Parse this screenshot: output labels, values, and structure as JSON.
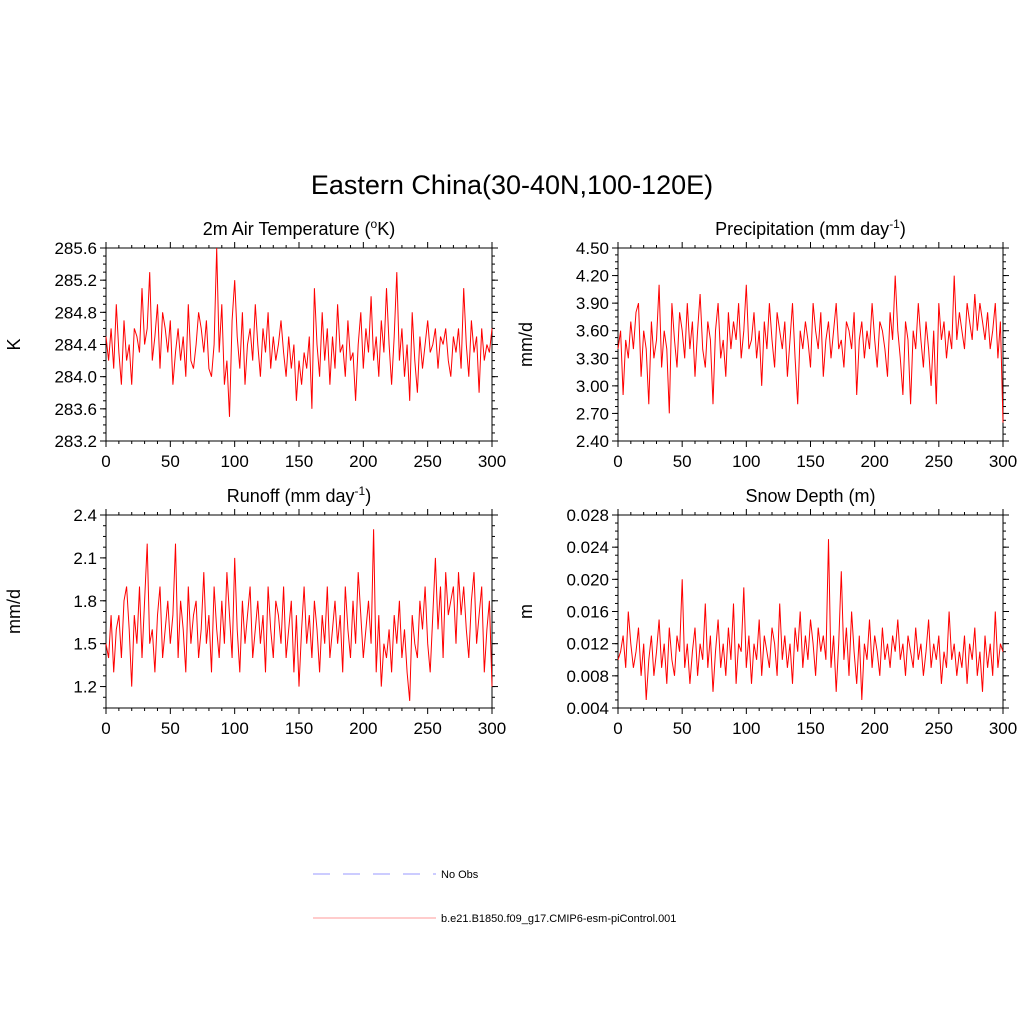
{
  "figure": {
    "title": "Eastern China(30-40N,100-120E)"
  },
  "legend": {
    "items": [
      {
        "label": "No Obs",
        "style": "dashed",
        "color": "#9999ff"
      },
      {
        "label": "b.e21.B1850.f09_g17.CMIP6-esm-piControl.001",
        "style": "solid",
        "color": "#ff9999"
      }
    ]
  },
  "chart_data": [
    {
      "type": "line",
      "title": "2m Air Temperature (",
      "title_sup": "o",
      "title_after": "K)",
      "ylabel": "K",
      "xlim": [
        0,
        300
      ],
      "ylim": [
        283.2,
        285.6
      ],
      "xticks": [
        "0",
        "50",
        "100",
        "150",
        "200",
        "250",
        "300"
      ],
      "yticks": [
        "283.2",
        "283.6",
        "284.0",
        "284.4",
        "284.8",
        "285.2",
        "285.6"
      ],
      "series": [
        {
          "color": "#ff0000",
          "x_start": 0,
          "x_step": 2,
          "values": [
            284.5,
            284.2,
            284.6,
            284.1,
            284.9,
            284.3,
            283.9,
            284.7,
            284.2,
            284.4,
            283.9,
            284.6,
            284.5,
            284.3,
            285.1,
            284.4,
            284.6,
            285.3,
            284.2,
            284.5,
            284.9,
            284.1,
            284.8,
            284.6,
            284.3,
            284.7,
            283.9,
            284.3,
            284.6,
            284.2,
            284.5,
            284.0,
            284.9,
            284.2,
            284.1,
            284.4,
            284.8,
            284.6,
            284.3,
            284.7,
            284.1,
            284.0,
            284.4,
            285.6,
            284.3,
            284.9,
            283.9,
            284.2,
            283.5,
            284.7,
            285.2,
            284.5,
            284.1,
            284.8,
            283.9,
            284.4,
            284.6,
            284.2,
            284.9,
            284.4,
            284.0,
            284.6,
            284.3,
            284.8,
            284.1,
            284.5,
            284.2,
            284.4,
            284.7,
            284.3,
            284.0,
            284.5,
            284.1,
            284.4,
            283.7,
            284.2,
            283.9,
            284.3,
            284.1,
            284.5,
            283.6,
            285.1,
            284.4,
            284.0,
            284.8,
            284.2,
            284.6,
            283.9,
            284.5,
            284.1,
            284.9,
            284.3,
            284.4,
            284.0,
            284.7,
            284.2,
            284.3,
            283.7,
            284.4,
            284.8,
            284.1,
            284.6,
            284.3,
            285.0,
            284.2,
            284.5,
            284.0,
            284.7,
            284.3,
            285.1,
            284.4,
            283.9,
            284.5,
            285.3,
            284.2,
            284.6,
            284.0,
            284.4,
            283.7,
            284.8,
            284.2,
            283.8,
            284.5,
            284.1,
            284.4,
            284.7,
            284.3,
            284.4,
            284.6,
            284.1,
            284.5,
            284.4,
            284.6,
            284.2,
            284.0,
            284.5,
            284.3,
            284.6,
            284.1,
            285.1,
            284.4,
            284.0,
            284.7,
            284.3,
            284.5,
            283.8,
            284.6,
            284.2,
            284.4,
            284.3,
            284.6
          ]
        }
      ]
    },
    {
      "type": "line",
      "title": "Precipitation (mm day",
      "title_sup": "-1",
      "title_after": ")",
      "ylabel": "mm/d",
      "xlim": [
        0,
        300
      ],
      "ylim": [
        2.4,
        4.5
      ],
      "xticks": [
        "0",
        "50",
        "100",
        "150",
        "200",
        "250",
        "300"
      ],
      "yticks": [
        "2.40",
        "2.70",
        "3.00",
        "3.30",
        "3.60",
        "3.90",
        "4.20",
        "4.50"
      ],
      "series": [
        {
          "color": "#ff0000",
          "x_start": 0,
          "x_step": 2,
          "values": [
            3.4,
            3.6,
            2.9,
            3.5,
            3.3,
            3.7,
            3.4,
            3.8,
            3.9,
            3.1,
            3.6,
            3.4,
            2.8,
            3.7,
            3.3,
            3.5,
            4.1,
            3.2,
            3.6,
            3.4,
            2.7,
            3.9,
            3.5,
            3.2,
            3.8,
            3.6,
            3.3,
            3.9,
            3.4,
            3.7,
            3.1,
            3.6,
            4.0,
            3.4,
            3.2,
            3.7,
            3.5,
            2.8,
            3.6,
            3.9,
            3.3,
            3.5,
            3.1,
            3.8,
            3.4,
            3.7,
            3.5,
            3.9,
            3.3,
            3.6,
            4.1,
            3.4,
            3.5,
            3.8,
            3.3,
            3.6,
            3.0,
            3.7,
            3.4,
            3.9,
            3.5,
            3.2,
            3.8,
            3.6,
            3.4,
            3.7,
            3.1,
            3.5,
            3.9,
            3.3,
            2.8,
            3.6,
            3.4,
            3.7,
            3.5,
            3.2,
            3.9,
            3.6,
            3.4,
            3.8,
            3.1,
            3.5,
            3.7,
            3.3,
            3.6,
            3.9,
            3.4,
            3.5,
            3.2,
            3.7,
            3.6,
            3.4,
            3.8,
            2.9,
            3.5,
            3.7,
            3.3,
            3.6,
            3.4,
            3.9,
            3.5,
            3.2,
            3.7,
            3.6,
            3.4,
            3.1,
            3.8,
            3.5,
            4.2,
            3.6,
            3.3,
            2.9,
            3.7,
            3.5,
            2.8,
            3.6,
            3.4,
            3.9,
            3.5,
            3.2,
            3.7,
            3.4,
            3.0,
            3.6,
            2.8,
            3.9,
            3.5,
            3.7,
            3.3,
            3.6,
            3.4,
            4.2,
            3.5,
            3.8,
            3.6,
            3.4,
            3.9,
            3.7,
            3.5,
            4.0,
            3.6,
            3.9,
            3.7,
            3.5,
            3.8,
            3.4,
            3.6,
            3.9,
            3.3,
            3.7,
            2.6
          ]
        }
      ]
    },
    {
      "type": "line",
      "title": "Runoff (mm day",
      "title_sup": "-1",
      "title_after": ")",
      "ylabel": "mm/d",
      "xlim": [
        0,
        300
      ],
      "ylim": [
        1.05,
        2.4
      ],
      "xticks": [
        "0",
        "50",
        "100",
        "150",
        "200",
        "250",
        "300"
      ],
      "yticks": [
        "1.2",
        "1.5",
        "1.8",
        "2.1",
        "2.4"
      ],
      "series": [
        {
          "color": "#ff0000",
          "x_start": 0,
          "x_step": 2,
          "values": [
            1.5,
            1.4,
            1.7,
            1.3,
            1.6,
            1.7,
            1.4,
            1.8,
            1.9,
            1.6,
            1.2,
            1.7,
            1.5,
            1.9,
            1.4,
            1.8,
            2.2,
            1.5,
            1.6,
            1.3,
            1.7,
            1.9,
            1.4,
            1.6,
            1.8,
            1.5,
            1.7,
            2.2,
            1.4,
            1.8,
            1.6,
            1.3,
            1.9,
            1.5,
            1.7,
            1.8,
            1.4,
            1.6,
            2.0,
            1.5,
            1.7,
            1.3,
            1.9,
            1.6,
            1.4,
            1.8,
            1.5,
            2.0,
            1.7,
            1.4,
            2.1,
            1.6,
            1.3,
            1.8,
            1.5,
            1.7,
            1.9,
            1.4,
            1.6,
            1.8,
            1.5,
            1.7,
            1.3,
            1.9,
            1.6,
            1.4,
            1.8,
            1.7,
            1.5,
            1.9,
            1.4,
            1.6,
            1.8,
            1.3,
            1.7,
            1.2,
            1.6,
            1.9,
            1.5,
            1.7,
            1.4,
            1.8,
            1.6,
            1.3,
            1.7,
            1.5,
            1.9,
            1.4,
            1.6,
            1.8,
            1.5,
            1.7,
            1.3,
            1.9,
            1.6,
            1.4,
            1.8,
            1.5,
            2.0,
            1.7,
            1.4,
            1.6,
            1.8,
            1.5,
            2.3,
            1.3,
            1.7,
            1.2,
            1.5,
            1.4,
            1.6,
            1.3,
            1.7,
            1.5,
            1.8,
            1.4,
            1.6,
            1.3,
            1.1,
            1.7,
            1.5,
            1.4,
            1.8,
            1.6,
            1.9,
            1.5,
            1.3,
            1.7,
            2.1,
            1.6,
            1.9,
            1.4,
            2.0,
            1.7,
            1.8,
            1.9,
            1.5,
            2.0,
            1.7,
            1.9,
            1.6,
            1.4,
            1.8,
            2.0,
            1.5,
            1.7,
            1.9,
            1.3,
            1.6,
            1.8,
            1.2
          ]
        }
      ]
    },
    {
      "type": "line",
      "title": "Snow Depth (m)",
      "title_sup": "",
      "title_after": "",
      "ylabel": "m",
      "xlim": [
        0,
        300
      ],
      "ylim": [
        0.004,
        0.028
      ],
      "xticks": [
        "0",
        "50",
        "100",
        "150",
        "200",
        "250",
        "300"
      ],
      "yticks": [
        "0.004",
        "0.008",
        "0.012",
        "0.016",
        "0.020",
        "0.024",
        "0.028"
      ],
      "series": [
        {
          "color": "#ff0000",
          "x_start": 0,
          "x_step": 2,
          "values": [
            0.01,
            0.011,
            0.013,
            0.009,
            0.016,
            0.012,
            0.009,
            0.011,
            0.014,
            0.008,
            0.012,
            0.005,
            0.01,
            0.013,
            0.008,
            0.011,
            0.015,
            0.009,
            0.012,
            0.007,
            0.014,
            0.01,
            0.008,
            0.013,
            0.011,
            0.02,
            0.009,
            0.012,
            0.007,
            0.011,
            0.014,
            0.008,
            0.012,
            0.01,
            0.017,
            0.009,
            0.013,
            0.006,
            0.011,
            0.015,
            0.009,
            0.012,
            0.008,
            0.014,
            0.01,
            0.017,
            0.007,
            0.012,
            0.011,
            0.019,
            0.009,
            0.013,
            0.007,
            0.012,
            0.01,
            0.015,
            0.008,
            0.013,
            0.011,
            0.009,
            0.014,
            0.012,
            0.008,
            0.017,
            0.01,
            0.013,
            0.009,
            0.012,
            0.007,
            0.014,
            0.011,
            0.016,
            0.009,
            0.013,
            0.01,
            0.015,
            0.012,
            0.008,
            0.014,
            0.011,
            0.013,
            0.01,
            0.025,
            0.009,
            0.013,
            0.006,
            0.012,
            0.021,
            0.01,
            0.014,
            0.008,
            0.016,
            0.011,
            0.007,
            0.013,
            0.005,
            0.012,
            0.01,
            0.015,
            0.009,
            0.013,
            0.011,
            0.008,
            0.014,
            0.01,
            0.012,
            0.009,
            0.013,
            0.011,
            0.015,
            0.01,
            0.012,
            0.008,
            0.013,
            0.011,
            0.009,
            0.014,
            0.01,
            0.012,
            0.008,
            0.011,
            0.015,
            0.009,
            0.012,
            0.01,
            0.013,
            0.007,
            0.011,
            0.009,
            0.016,
            0.01,
            0.012,
            0.008,
            0.011,
            0.009,
            0.013,
            0.007,
            0.012,
            0.01,
            0.014,
            0.008,
            0.011,
            0.006,
            0.013,
            0.009,
            0.012,
            0.008,
            0.016,
            0.009,
            0.012,
            0.011
          ]
        }
      ]
    }
  ]
}
